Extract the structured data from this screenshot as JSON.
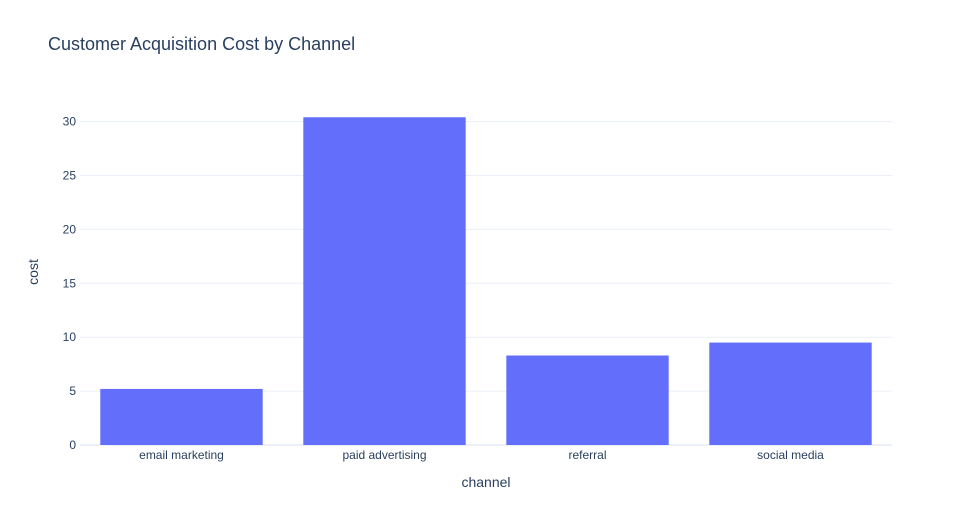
{
  "chart_data": {
    "type": "bar",
    "title": "Customer Acquisition Cost by Channel",
    "xlabel": "channel",
    "ylabel": "cost",
    "categories": [
      "email marketing",
      "paid advertising",
      "referral",
      "social media"
    ],
    "values": [
      5.2,
      30.4,
      8.3,
      9.5
    ],
    "ylim": [
      0,
      32
    ],
    "yticks": [
      0,
      5,
      10,
      15,
      20,
      25,
      30
    ],
    "grid": true,
    "bar_color": "#636efa",
    "grid_color": "#ebf0f8",
    "text_color": "#2a3f5f"
  }
}
